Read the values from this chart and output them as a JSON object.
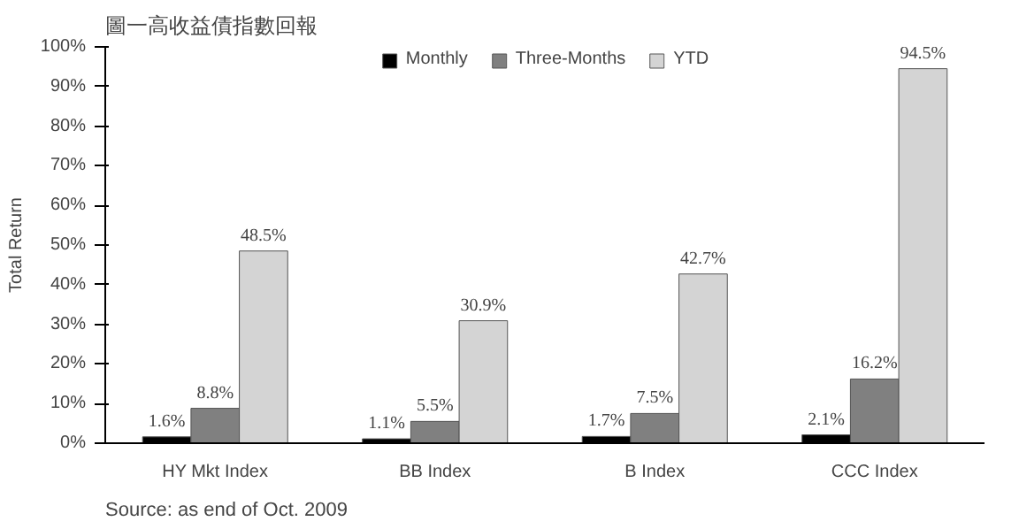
{
  "chart_data": {
    "type": "bar",
    "title": "圖一高收益債指數回報",
    "categories": [
      "HY Mkt Index",
      "BB Index",
      "B Index",
      "CCC Index"
    ],
    "series": [
      {
        "name": "Monthly",
        "color": "#000000",
        "values": [
          1.6,
          1.1,
          1.7,
          2.1
        ],
        "value_labels": [
          "1.6%",
          "1.1%",
          "1.7%",
          "2.1%"
        ]
      },
      {
        "name": "Three-Months",
        "color": "#808080",
        "values": [
          8.8,
          5.5,
          7.5,
          16.2
        ],
        "value_labels": [
          "8.8%",
          "5.5%",
          "7.5%",
          "16.2%"
        ]
      },
      {
        "name": "YTD",
        "color": "#d4d4d4",
        "values": [
          48.5,
          30.9,
          42.7,
          94.5
        ],
        "value_labels": [
          "48.5%",
          "30.9%",
          "42.7%",
          "94.5%"
        ]
      }
    ],
    "ylabel": "Total Return",
    "ylim": [
      0,
      100
    ],
    "yticks": [
      {
        "value": 0,
        "label": "0%"
      },
      {
        "value": 10,
        "label": "10%"
      },
      {
        "value": 20,
        "label": "20%"
      },
      {
        "value": 30,
        "label": "30%"
      },
      {
        "value": 40,
        "label": "40%"
      },
      {
        "value": 50,
        "label": "50%"
      },
      {
        "value": 60,
        "label": "60%"
      },
      {
        "value": 70,
        "label": "70%"
      },
      {
        "value": 80,
        "label": "80%"
      },
      {
        "value": 90,
        "label": "90%"
      },
      {
        "value": 100,
        "label": "100%"
      }
    ],
    "legend": "top",
    "grid": false,
    "annotations": [
      "Source: as end of Oct. 2009"
    ]
  }
}
